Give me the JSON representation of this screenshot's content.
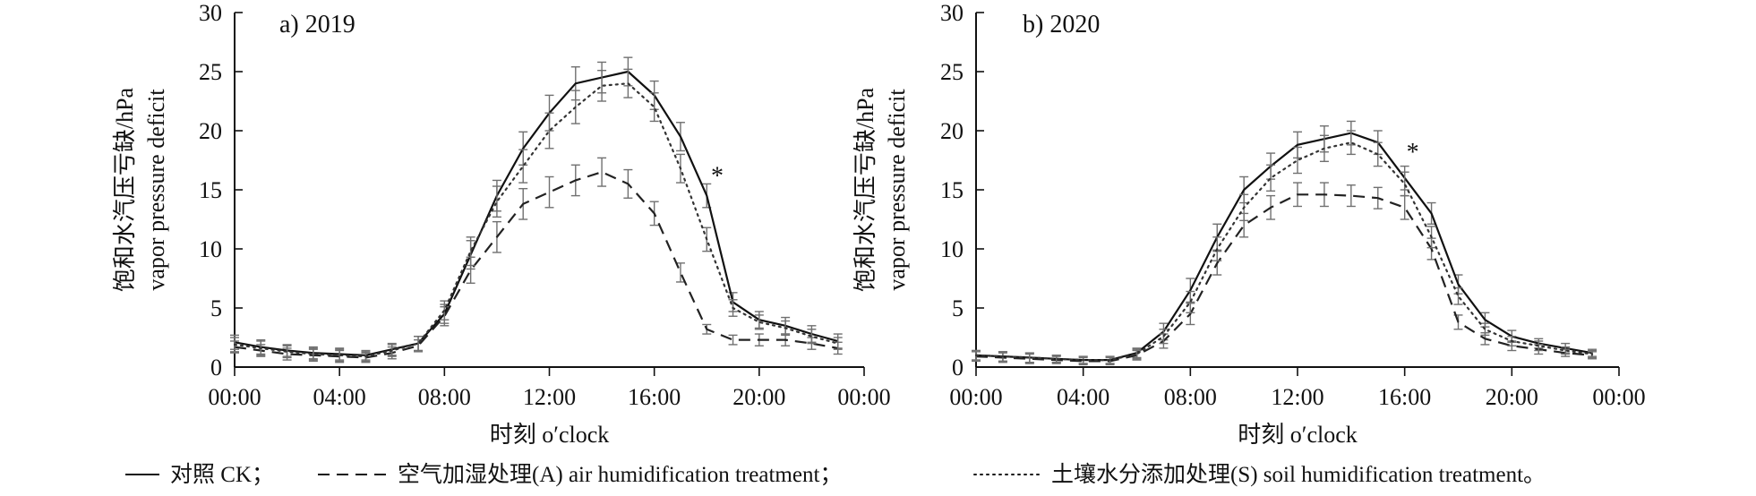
{
  "chart_data": [
    {
      "type": "line",
      "panel_label": "a) 2019",
      "xlabel": "时刻 o′clock",
      "ylabel_cn": "饱和水汽压亏缺/hPa",
      "ylabel_en": "vapor pressure deficit",
      "x_ticks": [
        "00:00",
        "04:00",
        "08:00",
        "12:00",
        "16:00",
        "20:00",
        "00:00"
      ],
      "y_ticks": [
        "0",
        "5",
        "10",
        "15",
        "20",
        "25",
        "30"
      ],
      "xlim": [
        0,
        24
      ],
      "ylim": [
        0,
        30
      ],
      "x": [
        0,
        1,
        2,
        3,
        4,
        5,
        6,
        7,
        8,
        9,
        10,
        11,
        12,
        13,
        14,
        15,
        16,
        17,
        18,
        19,
        20,
        21,
        22,
        23
      ],
      "annotation": {
        "text": "*",
        "x": 18.4,
        "y": 15.5
      },
      "series": [
        {
          "key": "CK",
          "style": "solid",
          "values": [
            2.1,
            1.7,
            1.4,
            1.2,
            1.1,
            1.0,
            1.5,
            2.0,
            4.5,
            9.5,
            14.5,
            18.5,
            21.5,
            24.0,
            24.5,
            25.0,
            23.0,
            19.5,
            14.5,
            5.5,
            4.0,
            3.5,
            2.8,
            2.2
          ],
          "errors": [
            0.6,
            0.6,
            0.5,
            0.5,
            0.5,
            0.4,
            0.5,
            0.6,
            0.8,
            1.2,
            1.3,
            1.4,
            1.5,
            1.4,
            1.3,
            1.2,
            1.2,
            1.2,
            1.0,
            0.8,
            0.7,
            0.7,
            0.7,
            0.6
          ]
        },
        {
          "key": "A",
          "style": "dashed",
          "values": [
            1.7,
            1.4,
            1.1,
            1.0,
            0.9,
            0.8,
            1.2,
            1.8,
            4.3,
            8.2,
            11.0,
            13.8,
            14.8,
            15.8,
            16.5,
            15.5,
            13.0,
            8.0,
            3.2,
            2.3,
            2.3,
            2.3,
            2.0,
            1.6
          ],
          "errors": [
            0.5,
            0.5,
            0.5,
            0.5,
            0.5,
            0.4,
            0.5,
            0.5,
            0.8,
            1.1,
            1.3,
            1.3,
            1.3,
            1.3,
            1.2,
            1.2,
            1.0,
            0.8,
            0.4,
            0.4,
            0.5,
            0.5,
            0.5,
            0.5
          ]
        },
        {
          "key": "S",
          "style": "dotted",
          "values": [
            1.9,
            1.6,
            1.3,
            1.1,
            1.0,
            0.9,
            1.4,
            2.0,
            4.8,
            9.8,
            14.0,
            17.0,
            20.0,
            22.0,
            23.8,
            24.0,
            22.0,
            16.8,
            10.8,
            5.0,
            3.8,
            3.3,
            2.6,
            2.0
          ],
          "errors": [
            0.6,
            0.6,
            0.5,
            0.5,
            0.5,
            0.4,
            0.5,
            0.6,
            0.8,
            1.2,
            1.3,
            1.4,
            1.5,
            1.4,
            1.3,
            1.2,
            1.2,
            1.2,
            1.0,
            0.7,
            0.6,
            0.6,
            0.6,
            0.5
          ]
        }
      ]
    },
    {
      "type": "line",
      "panel_label": "b) 2020",
      "xlabel": "时刻 o′clock",
      "ylabel_cn": "饱和水汽压亏缺/hPa",
      "ylabel_en": "vapor pressure deficit",
      "x_ticks": [
        "00:00",
        "04:00",
        "08:00",
        "12:00",
        "16:00",
        "20:00",
        "00:00"
      ],
      "y_ticks": [
        "0",
        "5",
        "10",
        "15",
        "20",
        "25",
        "30"
      ],
      "xlim": [
        0,
        24
      ],
      "ylim": [
        0,
        30
      ],
      "x": [
        0,
        1,
        2,
        3,
        4,
        5,
        6,
        7,
        8,
        9,
        10,
        11,
        12,
        13,
        14,
        15,
        16,
        17,
        18,
        19,
        20,
        21,
        22,
        23
      ],
      "annotation": {
        "text": "*",
        "x": 16.3,
        "y": 17.5
      },
      "series": [
        {
          "key": "CK",
          "style": "solid",
          "values": [
            1.0,
            0.9,
            0.8,
            0.7,
            0.6,
            0.6,
            1.2,
            3.0,
            6.5,
            11.0,
            15.0,
            17.0,
            18.8,
            19.3,
            19.8,
            19.0,
            16.0,
            13.0,
            7.0,
            4.0,
            2.6,
            2.0,
            1.6,
            1.2
          ],
          "errors": [
            0.4,
            0.4,
            0.4,
            0.3,
            0.3,
            0.3,
            0.4,
            0.7,
            1.0,
            1.1,
            1.1,
            1.1,
            1.1,
            1.1,
            1.0,
            1.0,
            1.0,
            0.9,
            0.8,
            0.6,
            0.5,
            0.4,
            0.4,
            0.3
          ]
        },
        {
          "key": "A",
          "style": "dashed",
          "values": [
            0.9,
            0.8,
            0.7,
            0.6,
            0.5,
            0.5,
            1.0,
            2.2,
            4.5,
            8.8,
            12.0,
            13.5,
            14.6,
            14.6,
            14.5,
            14.3,
            13.5,
            10.0,
            3.8,
            2.4,
            1.8,
            1.5,
            1.2,
            1.0
          ],
          "errors": [
            0.4,
            0.4,
            0.4,
            0.3,
            0.3,
            0.3,
            0.4,
            0.6,
            0.9,
            1.0,
            1.0,
            1.0,
            1.0,
            1.0,
            0.9,
            0.9,
            1.0,
            0.9,
            0.6,
            0.5,
            0.4,
            0.4,
            0.3,
            0.3
          ]
        },
        {
          "key": "S",
          "style": "dotted",
          "values": [
            1.0,
            0.9,
            0.8,
            0.7,
            0.6,
            0.6,
            1.1,
            2.6,
            5.5,
            10.0,
            13.5,
            16.0,
            17.5,
            18.5,
            19.0,
            18.0,
            15.5,
            11.0,
            6.0,
            3.2,
            2.2,
            1.8,
            1.4,
            1.1
          ],
          "errors": [
            0.4,
            0.4,
            0.4,
            0.3,
            0.3,
            0.3,
            0.4,
            0.6,
            0.9,
            1.0,
            1.1,
            1.1,
            1.1,
            1.1,
            1.0,
            1.0,
            1.0,
            0.9,
            0.7,
            0.5,
            0.4,
            0.4,
            0.3,
            0.3
          ]
        }
      ]
    }
  ],
  "legend": {
    "items": [
      {
        "key": "CK",
        "style": "solid",
        "label": "对照 CK；"
      },
      {
        "key": "A",
        "style": "dashed",
        "label": "空气加湿处理(A) air humidification treatment；"
      },
      {
        "key": "S",
        "style": "dotted",
        "label": "土壤水分添加处理(S) soil humidification treatment。"
      }
    ]
  }
}
